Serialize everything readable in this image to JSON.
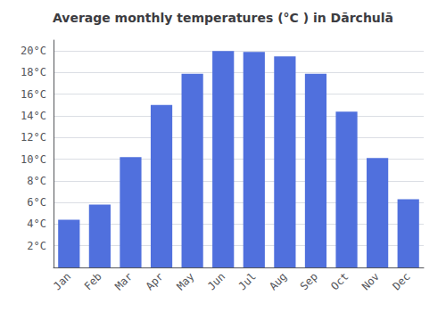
{
  "chart_data": {
    "type": "bar",
    "title": "Average monthly temperatures (°C ) in Dārchulā",
    "categories": [
      "Jan",
      "Feb",
      "Mar",
      "Apr",
      "May",
      "Jun",
      "Jul",
      "Aug",
      "Sep",
      "Oct",
      "Nov",
      "Dec"
    ],
    "values": [
      4.4,
      5.8,
      10.2,
      15.0,
      17.9,
      20.0,
      19.9,
      19.5,
      17.9,
      14.4,
      10.1,
      6.3
    ],
    "ylim": [
      0,
      21
    ],
    "yticks": [
      {
        "value": 2,
        "label": "2°C"
      },
      {
        "value": 4,
        "label": "4°C"
      },
      {
        "value": 6,
        "label": "6°C"
      },
      {
        "value": 8,
        "label": "8°C"
      },
      {
        "value": 10,
        "label": "10°C"
      },
      {
        "value": 12,
        "label": "12°C"
      },
      {
        "value": 14,
        "label": "14°C"
      },
      {
        "value": 16,
        "label": "16°C"
      },
      {
        "value": 18,
        "label": "18°C"
      },
      {
        "value": 20,
        "label": "20°C"
      }
    ],
    "grid": true
  }
}
